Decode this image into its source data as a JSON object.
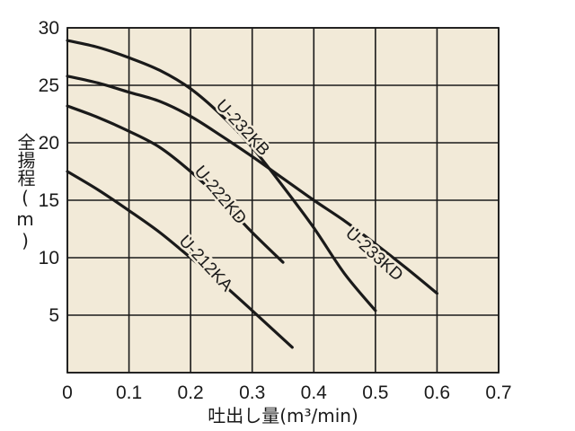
{
  "chart_data": {
    "type": "line",
    "xlabel": "吐出し量(m³/min)",
    "ylabel": "全揚程(m)",
    "xlim": [
      0,
      0.7
    ],
    "ylim": [
      0,
      30
    ],
    "x_ticks": [
      "0",
      "0.1",
      "0.2",
      "0.3",
      "0.4",
      "0.5",
      "0.6",
      "0.7"
    ],
    "y_ticks": [
      "5",
      "10",
      "15",
      "20",
      "25",
      "30"
    ],
    "grid": true,
    "background": "#f2ead8",
    "line_color": "#1a1a1a",
    "series": [
      {
        "name": "U-232KB",
        "x": [
          0,
          0.05,
          0.1,
          0.15,
          0.2,
          0.25,
          0.3,
          0.35,
          0.4,
          0.45,
          0.5
        ],
        "y": [
          28.9,
          28.3,
          27.4,
          26.3,
          24.7,
          22.4,
          19.6,
          16.2,
          12.6,
          8.6,
          5.4
        ]
      },
      {
        "name": "U-233KD",
        "x": [
          0,
          0.05,
          0.1,
          0.15,
          0.2,
          0.25,
          0.3,
          0.35,
          0.4,
          0.45,
          0.5,
          0.55,
          0.6
        ],
        "y": [
          25.8,
          25.2,
          24.4,
          23.6,
          22.3,
          20.6,
          18.8,
          16.9,
          15.0,
          13.2,
          11.2,
          9.1,
          6.9
        ]
      },
      {
        "name": "U-222KD",
        "x": [
          0,
          0.05,
          0.1,
          0.15,
          0.2,
          0.25,
          0.3,
          0.35
        ],
        "y": [
          23.2,
          22.2,
          21.0,
          19.6,
          17.5,
          15.0,
          12.2,
          9.6
        ]
      },
      {
        "name": "U-212KA",
        "x": [
          0,
          0.05,
          0.1,
          0.15,
          0.2,
          0.25,
          0.3,
          0.365
        ],
        "y": [
          17.5,
          15.9,
          14.1,
          12.2,
          10.0,
          7.8,
          5.4,
          2.2
        ]
      }
    ]
  }
}
